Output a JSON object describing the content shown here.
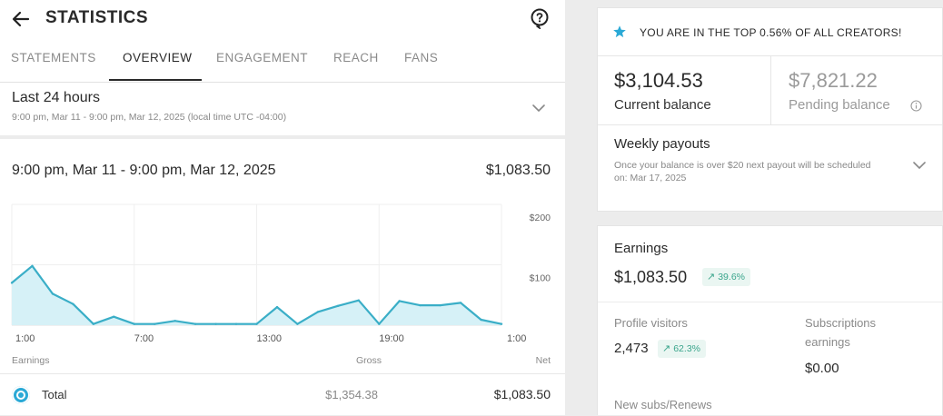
{
  "header": {
    "title": "STATISTICS",
    "tabs": [
      {
        "label": "STATEMENTS"
      },
      {
        "label": "OVERVIEW"
      },
      {
        "label": "ENGAGEMENT"
      },
      {
        "label": "REACH"
      },
      {
        "label": "FANS"
      }
    ],
    "active_tab": "OVERVIEW"
  },
  "period": {
    "title": "Last 24 hours",
    "subtitle": "9:00 pm, Mar 11 - 9:00 pm, Mar 12, 2025 (local time UTC -04:00)"
  },
  "chart_panel": {
    "range_label": "9:00 pm, Mar 11 - 9:00 pm, Mar 12, 2025",
    "total_amount": "$1,083.50",
    "legend": {
      "earnings_col": "Earnings",
      "gross_col": "Gross",
      "net_col": "Net",
      "row_label": "Total",
      "gross_value": "$1,354.38",
      "net_value": "$1,083.50"
    }
  },
  "chart_data": {
    "type": "area",
    "x_tick_labels": [
      "1:00",
      "7:00",
      "13:00",
      "19:00",
      "1:00"
    ],
    "y_tick_labels": [
      "$100",
      "$200"
    ],
    "ylim": [
      0,
      200
    ],
    "grid": true,
    "series": [
      {
        "color": "#3aaec7",
        "fill": "#d6f1f7",
        "x": [
          0,
          1,
          2,
          3,
          4,
          5,
          6,
          7,
          8,
          9,
          10,
          11,
          12,
          13,
          14,
          15,
          16,
          17,
          18,
          19,
          20,
          21,
          22,
          23,
          24
        ],
        "values": [
          70,
          98,
          52,
          35,
          2,
          14,
          2,
          2,
          7,
          2,
          2,
          2,
          2,
          30,
          2,
          22,
          32,
          41,
          2,
          40,
          33,
          33,
          37,
          9,
          2
        ]
      }
    ]
  },
  "right_panel": {
    "top_banner": "YOU ARE IN THE TOP 0.56% OF ALL CREATORS!",
    "current_balance": "$3,104.53",
    "current_balance_label": "Current balance",
    "pending_balance": "$7,821.22",
    "pending_balance_label": "Pending balance",
    "payouts_title": "Weekly payouts",
    "payouts_sub": "Once your balance is over $20 next payout will be scheduled on: Mar 17, 2025",
    "earnings_label": "Earnings",
    "earnings_value": "$1,083.50",
    "earnings_change": "39.6%",
    "profile_visitors_label": "Profile visitors",
    "profile_visitors_value": "2,473",
    "profile_visitors_change": "62.3%",
    "subs_earnings_label": "Subscriptions earnings",
    "subs_earnings_value": "$0.00",
    "new_subs_label": "New subs/Renews"
  },
  "colors": {
    "accent": "#2aa9d6",
    "line": "#3aaec7",
    "fill": "#d6f1f7",
    "positive": "#3aa58c"
  },
  "icons": {
    "back": "arrow-left-icon",
    "help": "help-icon",
    "chevron": "chevron-down-icon",
    "star": "star-icon",
    "info": "info-icon",
    "trend": "arrow-up-right-icon"
  }
}
